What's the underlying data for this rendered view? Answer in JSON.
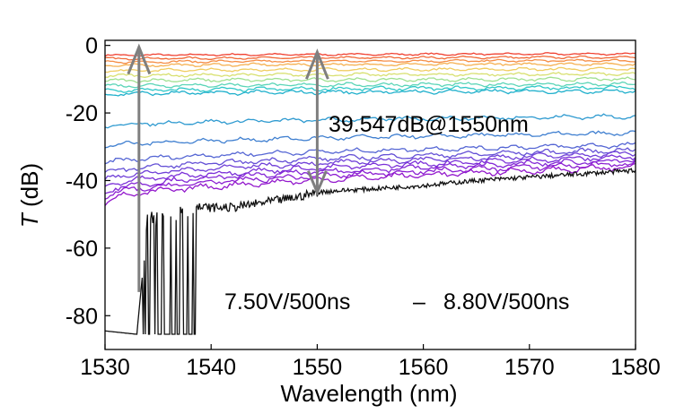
{
  "chart_data": {
    "type": "line",
    "title": "",
    "xlabel": "Wavelength (nm)",
    "ylabel_italic": "T",
    "ylabel_rest": " (dB)",
    "xlim": [
      1530,
      1580
    ],
    "ylim": [
      -90,
      1.5
    ],
    "xticks": [
      1530,
      1540,
      1550,
      1560,
      1570,
      1580
    ],
    "yticks": [
      0,
      -20,
      -40,
      -60,
      -80
    ],
    "xtick_labels": [
      "1530",
      "1540",
      "1550",
      "1560",
      "1570",
      "1580"
    ],
    "ytick_labels": [
      "0",
      "-20",
      "-40",
      "-60",
      "-80"
    ],
    "grid": false,
    "legend": "none",
    "colormap": "rainbow",
    "curves": [
      {
        "start": -3,
        "end": -2.5
      },
      {
        "start": -4,
        "end": -3.5
      },
      {
        "start": -5,
        "end": -4.5
      },
      {
        "start": -6,
        "end": -5.5
      },
      {
        "start": -7.5,
        "end": -7
      },
      {
        "start": -9,
        "end": -8.5
      },
      {
        "start": -10.5,
        "end": -10
      },
      {
        "start": -12,
        "end": -11.5
      },
      {
        "start": -13.5,
        "end": -12.5
      },
      {
        "start": -14.5,
        "end": -13.5
      },
      {
        "start": -24,
        "end": -21
      },
      {
        "start": -30,
        "end": -26
      },
      {
        "start": -35,
        "end": -29.5
      },
      {
        "start": -38,
        "end": -31
      },
      {
        "start": -40,
        "end": -32
      },
      {
        "start": -42,
        "end": -33
      },
      {
        "start": -43.5,
        "end": -34
      },
      {
        "start": -45,
        "end": -35
      },
      {
        "start": -46.5,
        "end": -36
      }
    ],
    "curve_colors": [
      "#f04030",
      "#f06a38",
      "#f58d45",
      "#f5b050",
      "#f0cc60",
      "#d8e070",
      "#a0e090",
      "#5cd5b8",
      "#30c8c8",
      "#20b0cc",
      "#2e9ad0",
      "#3f7fd0",
      "#5566d4",
      "#6450d6",
      "#7040d8",
      "#7b30d8",
      "#8428d6",
      "#8c20d2",
      "#9318cc"
    ],
    "noisy_trace": {
      "color": "#111111",
      "drop_x": [
        1533.5,
        1538.5
      ],
      "floor": -85.5,
      "points": [
        [
          1530,
          -84.5
        ],
        [
          1533,
          -85.5
        ],
        [
          1534,
          -52
        ],
        [
          1535,
          -51
        ],
        [
          1536,
          -50
        ],
        [
          1537,
          -49
        ],
        [
          1538,
          -48
        ],
        [
          1539,
          -48
        ],
        [
          1540,
          -48
        ],
        [
          1542,
          -48
        ],
        [
          1544,
          -47
        ],
        [
          1546,
          -46
        ],
        [
          1548,
          -45
        ],
        [
          1550,
          -43.5
        ],
        [
          1552,
          -43
        ],
        [
          1555,
          -42.5
        ],
        [
          1560,
          -41.5
        ],
        [
          1565,
          -40
        ],
        [
          1570,
          -39
        ],
        [
          1575,
          -38
        ],
        [
          1580,
          -37
        ]
      ]
    },
    "annotations": {
      "extinction": "39.547dB@1550nm",
      "range_from": "7.50V/500ns",
      "range_sep": "–",
      "range_to": "8.80V/500ns",
      "arrow_left": {
        "x": 1533.2,
        "y_from": -73,
        "y_to": -0.5
      },
      "arrow_mid": {
        "x": 1550,
        "y_from": -43.5,
        "y_to": -2
      }
    }
  }
}
